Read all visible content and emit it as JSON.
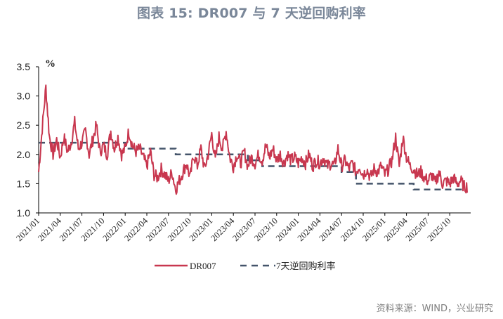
{
  "header": {
    "title": "图表 15: DR007 与 7 天逆回购利率"
  },
  "footer": {
    "source": "资料来源：WIND，兴业研究"
  },
  "colors": {
    "dr007": "#c8374f",
    "reverse_repo": "#44546a",
    "title": "#7a8799",
    "axis": "#000000"
  },
  "chart_data": {
    "type": "line",
    "title": "图表 15: DR007 与 7 天逆回购利率",
    "xlabel": "",
    "ylabel": "%",
    "ylim": [
      1.0,
      3.5
    ],
    "yticks": [
      "1.0",
      "1.5",
      "2.0",
      "2.5",
      "3.0",
      "3.5"
    ],
    "grid": false,
    "legend_position": "bottom",
    "x_ticks": [
      "2021/01",
      "2021/04",
      "2021/07",
      "2021/10",
      "2022/01",
      "2022/04",
      "2022/07",
      "2022/10",
      "2023/01",
      "2023/04",
      "2023/07",
      "2023/10",
      "2024/01",
      "2024/04",
      "2024/07",
      "2024/10",
      "2025/01",
      "2025/04",
      "2025/07",
      "2025/10"
    ],
    "series": [
      {
        "name": "DR007",
        "style": "solid",
        "x": [
          "2021/01",
          "2021/01b",
          "2021/02",
          "2021/02b",
          "2021/03",
          "2021/03b",
          "2021/04",
          "2021/04b",
          "2021/05",
          "2021/05b",
          "2021/06",
          "2021/06b",
          "2021/07",
          "2021/07b",
          "2021/08",
          "2021/08b",
          "2021/09",
          "2021/09b",
          "2021/10",
          "2021/10b",
          "2021/11",
          "2021/11b",
          "2021/12",
          "2021/12b",
          "2022/01",
          "2022/01b",
          "2022/02",
          "2022/02b",
          "2022/03",
          "2022/03b",
          "2022/04",
          "2022/04b",
          "2022/05",
          "2022/05b",
          "2022/06",
          "2022/06b",
          "2022/07",
          "2022/07b",
          "2022/08",
          "2022/08b",
          "2022/09",
          "2022/09b",
          "2022/10",
          "2022/10b",
          "2022/11",
          "2022/11b",
          "2022/12",
          "2022/12b",
          "2023/01",
          "2023/01b",
          "2023/02",
          "2023/02b",
          "2023/03",
          "2023/03b",
          "2023/04",
          "2023/04b",
          "2023/05",
          "2023/05b",
          "2023/06",
          "2023/06b",
          "2023/07",
          "2023/07b",
          "2023/08",
          "2023/08b",
          "2023/09",
          "2023/09b",
          "2023/10",
          "2023/10b",
          "2023/11",
          "2023/11b",
          "2023/12",
          "2023/12b",
          "2024/01",
          "2024/01b",
          "2024/02",
          "2024/02b",
          "2024/03",
          "2024/03b",
          "2024/04",
          "2024/04b",
          "2024/05",
          "2024/05b",
          "2024/06",
          "2024/06b",
          "2024/07",
          "2024/07b",
          "2024/08",
          "2024/08b",
          "2024/09",
          "2024/09b",
          "2024/10",
          "2024/10b",
          "2024/11",
          "2024/11b",
          "2024/12",
          "2024/12b",
          "2025/01",
          "2025/01b",
          "2025/02",
          "2025/02b",
          "2025/03",
          "2025/03b",
          "2025/04",
          "2025/04b",
          "2025/05",
          "2025/05b",
          "2025/06",
          "2025/06b",
          "2025/07",
          "2025/07b",
          "2025/08",
          "2025/08b",
          "2025/09",
          "2025/09b",
          "2025/10",
          "2025/10b",
          "2025/11",
          "2025/11b",
          "2025/12"
        ],
        "values": [
          1.7,
          2.45,
          3.15,
          2.3,
          2.0,
          2.25,
          1.95,
          2.3,
          2.05,
          2.2,
          2.55,
          2.1,
          2.2,
          2.4,
          2.0,
          2.25,
          2.5,
          2.05,
          2.15,
          2.0,
          2.4,
          2.1,
          2.3,
          2.0,
          2.1,
          2.4,
          2.15,
          2.05,
          2.1,
          1.95,
          1.8,
          2.05,
          1.65,
          1.6,
          1.75,
          1.65,
          1.55,
          1.7,
          1.4,
          1.55,
          1.7,
          1.85,
          1.6,
          2.0,
          1.8,
          2.1,
          1.75,
          2.0,
          2.35,
          1.9,
          2.3,
          2.1,
          2.4,
          1.95,
          1.8,
          2.0,
          1.85,
          2.05,
          1.8,
          1.95,
          1.85,
          2.0,
          1.9,
          2.15,
          1.95,
          2.1,
          1.9,
          2.0,
          1.85,
          2.0,
          1.9,
          1.95,
          1.85,
          1.95,
          1.85,
          2.0,
          1.8,
          1.9,
          1.85,
          1.95,
          1.8,
          1.85,
          1.8,
          2.1,
          1.8,
          1.9,
          1.75,
          1.85,
          1.7,
          1.8,
          1.65,
          1.75,
          1.6,
          1.75,
          1.7,
          1.8,
          1.65,
          1.75,
          1.9,
          2.3,
          1.8,
          2.3,
          1.95,
          1.8,
          1.75,
          1.65,
          1.7,
          1.6,
          1.55,
          1.65,
          1.5,
          1.7,
          1.5,
          1.55,
          1.5,
          1.6,
          1.5,
          1.55,
          1.45
        ]
      },
      {
        "name": "7天逆回购利率",
        "style": "dashed",
        "steps": [
          {
            "from": "2021/01",
            "to": "2022/01",
            "value": 2.2
          },
          {
            "from": "2022/01",
            "to": "2022/08",
            "value": 2.1
          },
          {
            "from": "2022/08",
            "to": "2023/06",
            "value": 2.0
          },
          {
            "from": "2023/06",
            "to": "2023/08",
            "value": 1.9
          },
          {
            "from": "2023/08",
            "to": "2024/07",
            "value": 1.8
          },
          {
            "from": "2024/07",
            "to": "2024/09",
            "value": 1.7
          },
          {
            "from": "2024/09",
            "to": "2025/05",
            "value": 1.5
          },
          {
            "from": "2025/05",
            "to": "2025/12",
            "value": 1.4
          }
        ]
      }
    ]
  },
  "legend": {
    "items": [
      "DR007",
      "7天逆回购利率"
    ]
  }
}
